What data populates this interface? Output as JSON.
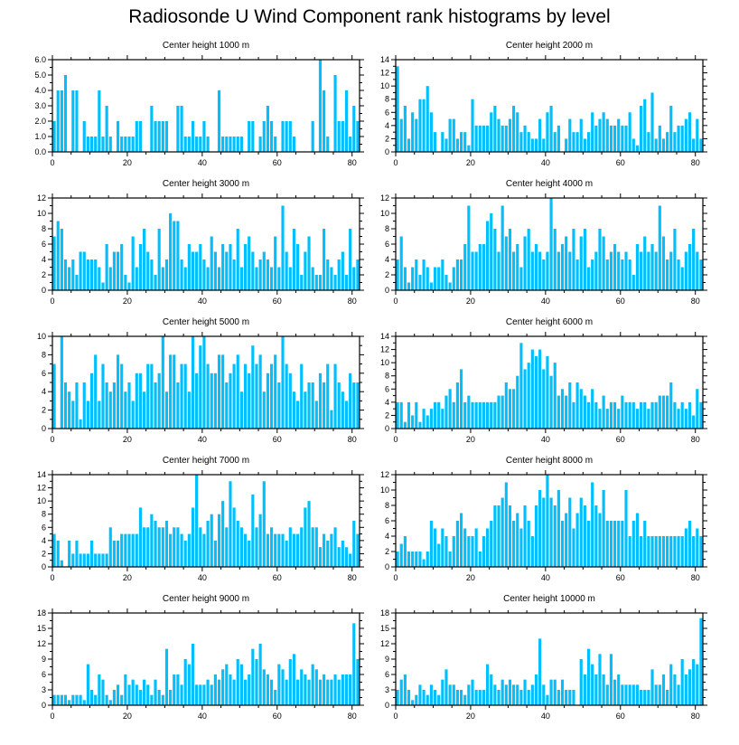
{
  "title": "Radiosonde U Wind Component rank histograms by level",
  "colors": {
    "bar": "#00BFFF",
    "bar_edge": "#FFFFFF",
    "axis": "#000000"
  },
  "chart_data": [
    {
      "type": "bar",
      "title": "Center height 1000 m",
      "xlim": [
        0,
        82
      ],
      "xticks": [
        0,
        20,
        40,
        60,
        80
      ],
      "ylim": [
        0,
        6
      ],
      "yticks": [
        "0.0",
        "1.0",
        "2.0",
        "3.0",
        "4.0",
        "5.0",
        "6.0"
      ],
      "ytick_values": [
        0,
        1,
        2,
        3,
        4,
        5,
        6
      ],
      "values": [
        2,
        4,
        4,
        5,
        0,
        4,
        4,
        0,
        2,
        1,
        1,
        1,
        4,
        1,
        3,
        1,
        0,
        2,
        1,
        1,
        1,
        1,
        2,
        2,
        0,
        0,
        3,
        2,
        2,
        2,
        2,
        0,
        0,
        3,
        3,
        1,
        1,
        2,
        1,
        1,
        2,
        1,
        0,
        0,
        4,
        1,
        1,
        1,
        1,
        1,
        1,
        0,
        2,
        2,
        0,
        1,
        2,
        3,
        2,
        1,
        0,
        2,
        2,
        2,
        1,
        0,
        0,
        0,
        0,
        2,
        0,
        6,
        4,
        1,
        0,
        5,
        2,
        2,
        4,
        1,
        3,
        2
      ]
    },
    {
      "type": "bar",
      "title": "Center height 2000 m",
      "xlim": [
        0,
        82
      ],
      "xticks": [
        0,
        20,
        40,
        60,
        80
      ],
      "ylim": [
        0,
        14
      ],
      "yticks": [
        "0",
        "2",
        "4",
        "6",
        "8",
        "10",
        "12",
        "14"
      ],
      "ytick_values": [
        0,
        2,
        4,
        6,
        8,
        10,
        12,
        14
      ],
      "values": [
        13,
        5,
        7,
        2,
        6,
        5,
        8,
        8,
        10,
        6,
        3,
        0,
        3,
        2,
        5,
        5,
        2,
        3,
        3,
        1,
        8,
        4,
        4,
        4,
        4,
        6,
        7,
        5,
        4,
        4,
        5,
        7,
        6,
        3,
        4,
        3,
        2,
        2,
        5,
        2,
        6,
        7,
        3,
        4,
        0,
        2,
        5,
        3,
        3,
        5,
        2,
        3,
        6,
        4,
        5,
        6,
        5,
        4,
        4,
        5,
        4,
        4,
        6,
        2,
        1,
        7,
        8,
        3,
        9,
        2,
        4,
        2,
        3,
        7,
        3,
        4,
        4,
        5,
        6,
        2,
        5,
        2
      ]
    },
    {
      "type": "bar",
      "title": "Center height 3000 m",
      "xlim": [
        0,
        82
      ],
      "xticks": [
        0,
        20,
        40,
        60,
        80
      ],
      "ylim": [
        0,
        12
      ],
      "yticks": [
        "0",
        "2",
        "4",
        "6",
        "8",
        "10",
        "12"
      ],
      "ytick_values": [
        0,
        2,
        4,
        6,
        8,
        10,
        12
      ],
      "values": [
        7,
        9,
        8,
        4,
        3,
        4,
        2,
        5,
        5,
        4,
        4,
        4,
        3,
        1,
        6,
        3,
        5,
        5,
        6,
        2,
        1,
        7,
        3,
        6,
        8,
        5,
        4,
        2,
        8,
        3,
        4,
        10,
        9,
        9,
        4,
        3,
        6,
        5,
        5,
        6,
        4,
        3,
        7,
        5,
        3,
        6,
        5,
        6,
        4,
        8,
        3,
        6,
        7,
        5,
        3,
        4,
        5,
        4,
        3,
        7,
        3,
        11,
        5,
        3,
        8,
        6,
        2,
        5,
        7,
        3,
        2,
        2,
        8,
        4,
        3,
        2,
        4,
        5,
        2,
        8,
        3,
        4
      ]
    },
    {
      "type": "bar",
      "title": "Center height 4000 m",
      "xlim": [
        0,
        82
      ],
      "xticks": [
        0,
        20,
        40,
        60,
        80
      ],
      "ylim": [
        0,
        12
      ],
      "yticks": [
        "0",
        "2",
        "4",
        "6",
        "8",
        "10",
        "12"
      ],
      "ytick_values": [
        0,
        2,
        4,
        6,
        8,
        10,
        12
      ],
      "values": [
        4,
        7,
        3,
        1,
        3,
        4,
        2,
        4,
        3,
        1,
        3,
        3,
        4,
        2,
        1,
        3,
        4,
        4,
        6,
        11,
        5,
        5,
        6,
        6,
        9,
        10,
        8,
        5,
        11,
        7,
        8,
        5,
        6,
        3,
        7,
        8,
        5,
        6,
        5,
        4,
        5,
        12,
        8,
        5,
        6,
        7,
        5,
        8,
        4,
        7,
        8,
        3,
        4,
        5,
        8,
        7,
        4,
        5,
        6,
        5,
        4,
        5,
        4,
        2,
        6,
        5,
        7,
        5,
        6,
        5,
        11,
        7,
        4,
        5,
        8,
        4,
        3,
        5,
        6,
        8,
        5,
        4
      ]
    },
    {
      "type": "bar",
      "title": "Center height 5000 m",
      "xlim": [
        0,
        82
      ],
      "xticks": [
        0,
        20,
        40,
        60,
        80
      ],
      "ylim": [
        0,
        10
      ],
      "yticks": [
        "0",
        "2",
        "4",
        "6",
        "8",
        "10"
      ],
      "ytick_values": [
        0,
        2,
        4,
        6,
        8,
        10
      ],
      "values": [
        7,
        0,
        10,
        5,
        4,
        3,
        5,
        1,
        5,
        3,
        6,
        8,
        3,
        7,
        5,
        4,
        5,
        8,
        7,
        4,
        5,
        3,
        6,
        6,
        4,
        7,
        7,
        5,
        6,
        10,
        4,
        8,
        8,
        5,
        7,
        7,
        4,
        10,
        6,
        9,
        10,
        7,
        6,
        6,
        8,
        8,
        5,
        6,
        7,
        8,
        4,
        7,
        6,
        9,
        7,
        8,
        4,
        6,
        7,
        8,
        5,
        10,
        7,
        6,
        4,
        3,
        7,
        4,
        5,
        5,
        3,
        6,
        5,
        7,
        2,
        7,
        5,
        4,
        3,
        6,
        5,
        5
      ]
    },
    {
      "type": "bar",
      "title": "Center height 6000 m",
      "xlim": [
        0,
        82
      ],
      "xticks": [
        0,
        20,
        40,
        60,
        80
      ],
      "ylim": [
        0,
        14
      ],
      "yticks": [
        "0",
        "2",
        "4",
        "6",
        "8",
        "10",
        "12",
        "14"
      ],
      "ytick_values": [
        0,
        2,
        4,
        6,
        8,
        10,
        12,
        14
      ],
      "values": [
        4,
        4,
        1,
        4,
        2,
        4,
        1,
        3,
        2,
        3,
        4,
        4,
        3,
        5,
        6,
        4,
        7,
        9,
        4,
        5,
        4,
        4,
        4,
        4,
        4,
        4,
        4,
        5,
        5,
        7,
        6,
        6,
        8,
        13,
        9,
        10,
        12,
        11,
        12,
        9,
        11,
        8,
        10,
        5,
        6,
        5,
        7,
        4,
        7,
        6,
        5,
        4,
        6,
        4,
        3,
        5,
        3,
        4,
        4,
        3,
        5,
        4,
        4,
        4,
        3,
        4,
        4,
        3,
        4,
        4,
        5,
        5,
        5,
        7,
        4,
        3,
        4,
        3,
        4,
        2,
        6,
        4
      ]
    },
    {
      "type": "bar",
      "title": "Center height 7000 m",
      "xlim": [
        0,
        82
      ],
      "xticks": [
        0,
        20,
        40,
        60,
        80
      ],
      "ylim": [
        0,
        14
      ],
      "yticks": [
        "0",
        "2",
        "4",
        "6",
        "8",
        "10",
        "12",
        "14"
      ],
      "ytick_values": [
        0,
        2,
        4,
        6,
        8,
        10,
        12,
        14
      ],
      "values": [
        5,
        4,
        1,
        0,
        4,
        2,
        4,
        2,
        2,
        2,
        4,
        2,
        2,
        2,
        2,
        6,
        4,
        4,
        5,
        5,
        5,
        5,
        5,
        9,
        6,
        6,
        8,
        7,
        6,
        6,
        7,
        5,
        6,
        6,
        5,
        4,
        5,
        9,
        14,
        6,
        5,
        7,
        8,
        4,
        8,
        10,
        6,
        13,
        9,
        7,
        6,
        5,
        4,
        11,
        6,
        8,
        13,
        5,
        6,
        5,
        5,
        5,
        4,
        6,
        5,
        5,
        6,
        9,
        10,
        6,
        6,
        3,
        5,
        4,
        5,
        6,
        3,
        4,
        3,
        2,
        7,
        5
      ]
    },
    {
      "type": "bar",
      "title": "Center height 8000 m",
      "xlim": [
        0,
        82
      ],
      "xticks": [
        0,
        20,
        40,
        60,
        80
      ],
      "ylim": [
        0,
        12
      ],
      "yticks": [
        "0",
        "2",
        "4",
        "6",
        "8",
        "10",
        "12"
      ],
      "ytick_values": [
        0,
        2,
        4,
        6,
        8,
        10,
        12
      ],
      "values": [
        2,
        3,
        4,
        2,
        2,
        2,
        2,
        1,
        2,
        6,
        5,
        3,
        5,
        4,
        2,
        4,
        6,
        7,
        5,
        4,
        4,
        5,
        2,
        4,
        5,
        6,
        8,
        8,
        9,
        11,
        8,
        6,
        7,
        5,
        8,
        6,
        4,
        8,
        10,
        9,
        12,
        9,
        8,
        10,
        6,
        7,
        9,
        5,
        7,
        9,
        8,
        6,
        11,
        8,
        7,
        10,
        6,
        6,
        6,
        6,
        6,
        10,
        4,
        6,
        7,
        4,
        6,
        4,
        4,
        4,
        4,
        4,
        4,
        4,
        4,
        4,
        4,
        5,
        6,
        4,
        5,
        4
      ]
    },
    {
      "type": "bar",
      "title": "Center height 9000 m",
      "xlim": [
        0,
        82
      ],
      "xticks": [
        0,
        20,
        40,
        60,
        80
      ],
      "ylim": [
        0,
        18
      ],
      "yticks": [
        "0",
        "3",
        "6",
        "9",
        "12",
        "15",
        "18"
      ],
      "ytick_values": [
        0,
        3,
        6,
        9,
        12,
        15,
        18
      ],
      "values": [
        2,
        2,
        2,
        2,
        1,
        2,
        2,
        2,
        1,
        8,
        3,
        2,
        6,
        5,
        2,
        1,
        3,
        4,
        2,
        6,
        4,
        5,
        4,
        3,
        5,
        4,
        2,
        5,
        3,
        2,
        11,
        3,
        6,
        6,
        4,
        9,
        8,
        12,
        4,
        4,
        4,
        5,
        4,
        6,
        5,
        7,
        8,
        6,
        5,
        9,
        8,
        5,
        6,
        11,
        9,
        12,
        7,
        6,
        5,
        3,
        8,
        7,
        5,
        9,
        10,
        5,
        7,
        6,
        5,
        8,
        7,
        5,
        6,
        5,
        5,
        6,
        5,
        6,
        6,
        6,
        16,
        9,
        11
      ]
    },
    {
      "type": "bar",
      "title": "Center height 10000 m",
      "xlim": [
        0,
        82
      ],
      "xticks": [
        0,
        20,
        40,
        60,
        80
      ],
      "ylim": [
        0,
        18
      ],
      "yticks": [
        "0",
        "3",
        "6",
        "9",
        "12",
        "15",
        "18"
      ],
      "ytick_values": [
        0,
        3,
        6,
        9,
        12,
        15,
        18
      ],
      "values": [
        3,
        5,
        6,
        3,
        1,
        2,
        4,
        3,
        2,
        4,
        3,
        2,
        5,
        7,
        4,
        4,
        3,
        3,
        2,
        4,
        5,
        3,
        3,
        3,
        8,
        6,
        4,
        3,
        5,
        4,
        5,
        4,
        4,
        3,
        5,
        3,
        4,
        6,
        13,
        4,
        2,
        5,
        5,
        3,
        5,
        3,
        3,
        3,
        0,
        9,
        6,
        11,
        8,
        6,
        10,
        6,
        4,
        10,
        5,
        6,
        4,
        4,
        4,
        4,
        4,
        3,
        3,
        3,
        7,
        4,
        4,
        6,
        3,
        8,
        6,
        4,
        9,
        6,
        7,
        9,
        8,
        17,
        8
      ]
    }
  ]
}
